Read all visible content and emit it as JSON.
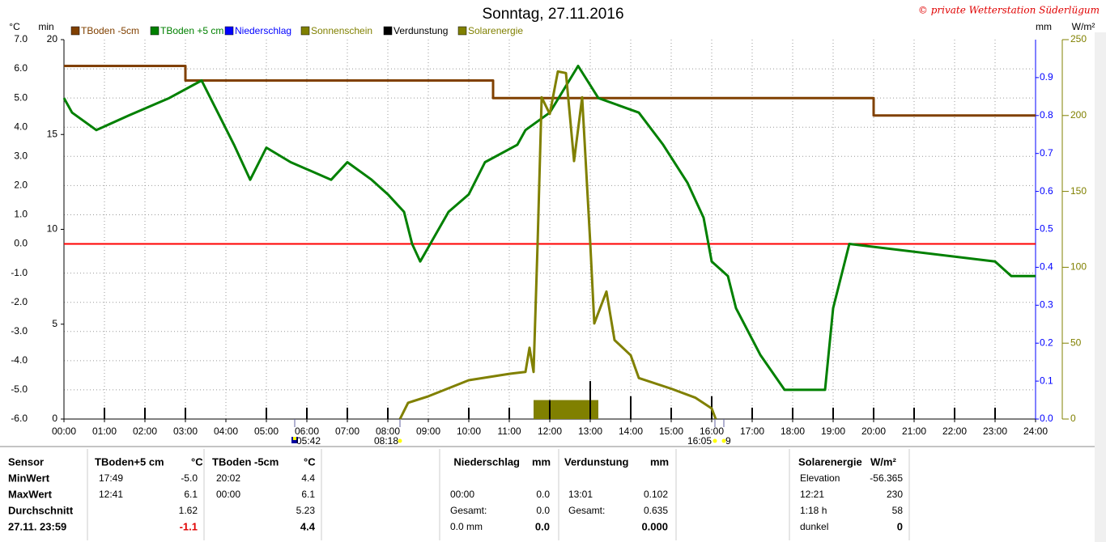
{
  "chart_data": {
    "type": "line",
    "title": "Sonntag, 27.11.2016",
    "credit": "© private Wetterstation Süderlügum",
    "y_unit": "°C",
    "y2_unit": "mm",
    "y3_unit": "min",
    "y4_unit": "W/m²",
    "xlim": [
      0,
      24
    ],
    "xticks": [
      {
        "value": 0,
        "label": "00:00"
      },
      {
        "value": 1,
        "label": "01:00"
      },
      {
        "value": 2,
        "label": "02:00"
      },
      {
        "value": 3,
        "label": "03:00"
      },
      {
        "value": 4,
        "label": "04:00"
      },
      {
        "value": 5,
        "label": "05:00"
      },
      {
        "value": 6,
        "label": "06:00"
      },
      {
        "value": 7,
        "label": "07:00"
      },
      {
        "value": 8,
        "label": "08:00"
      },
      {
        "value": 9,
        "label": "09:00"
      },
      {
        "value": 10,
        "label": "10:00"
      },
      {
        "value": 11,
        "label": "11:00"
      },
      {
        "value": 12,
        "label": "12:00"
      },
      {
        "value": 13,
        "label": "13:00"
      },
      {
        "value": 14,
        "label": "14:00"
      },
      {
        "value": 15,
        "label": "15:00"
      },
      {
        "value": 16,
        "label": "16:00"
      },
      {
        "value": 17,
        "label": "17:00"
      },
      {
        "value": 18,
        "label": "18:00"
      },
      {
        "value": 19,
        "label": "19:00"
      },
      {
        "value": 20,
        "label": "20:00"
      },
      {
        "value": 21,
        "label": "21:00"
      },
      {
        "value": 22,
        "label": "22:00"
      },
      {
        "value": 23,
        "label": "23:00"
      },
      {
        "value": 24,
        "label": "24:00"
      }
    ],
    "ylim": [
      -6,
      7
    ],
    "yticks": [
      {
        "value": -6,
        "label": "-6.0"
      },
      {
        "value": -5,
        "label": "-5.0"
      },
      {
        "value": -4,
        "label": "-4.0"
      },
      {
        "value": -3,
        "label": "-3.0"
      },
      {
        "value": -2,
        "label": "-2.0"
      },
      {
        "value": -1,
        "label": "-1.0"
      },
      {
        "value": 0,
        "label": "0.0"
      },
      {
        "value": 1,
        "label": "1.0"
      },
      {
        "value": 2,
        "label": "2.0"
      },
      {
        "value": 3,
        "label": "3.0"
      },
      {
        "value": 4,
        "label": "4.0"
      },
      {
        "value": 5,
        "label": "5.0"
      },
      {
        "value": 6,
        "label": "6.0"
      },
      {
        "value": 7,
        "label": "7.0"
      }
    ],
    "y2lim": [
      0,
      1
    ],
    "y2ticks": [
      {
        "value": 0,
        "label": "0.0"
      },
      0.1,
      0.2,
      0.3,
      0.4,
      0.5,
      0.6,
      0.7,
      0.8,
      0.9
    ],
    "y3lim": [
      0,
      20
    ],
    "y3ticks": [
      0,
      5,
      10,
      15,
      20
    ],
    "y4lim": [
      0,
      250
    ],
    "y4ticks": [
      0,
      50,
      100,
      150,
      200,
      250
    ],
    "grid": true,
    "zero_line_color": "#ff0000",
    "series": [
      {
        "name": "TBoden -5cm",
        "color": "#804000",
        "kind": "line",
        "axis": "y",
        "x": [
          0,
          3,
          3,
          10.6,
          10.6,
          20,
          20,
          24
        ],
        "values": [
          6.1,
          6.1,
          5.6,
          5.6,
          5.0,
          5.0,
          4.4,
          4.4
        ]
      },
      {
        "name": "TBoden +5 cm",
        "color": "#008000",
        "kind": "line",
        "axis": "y",
        "x": [
          0,
          0.2,
          0.8,
          1.6,
          2.6,
          3.4,
          3.8,
          4.2,
          4.6,
          5.0,
          5.6,
          6.6,
          7.0,
          7.6,
          8.0,
          8.4,
          8.6,
          8.8,
          9.5,
          10.0,
          10.4,
          11.2,
          11.4,
          12.0,
          12.7,
          13.2,
          14.2,
          14.8,
          15.4,
          15.8,
          16.0,
          16.4,
          16.6,
          17.2,
          17.8,
          18.8,
          19.0,
          19.4,
          23.0,
          23.4,
          24
        ],
        "values": [
          5.0,
          4.5,
          3.9,
          4.4,
          5.0,
          5.6,
          4.5,
          3.4,
          2.2,
          3.3,
          2.8,
          2.2,
          2.8,
          2.2,
          1.7,
          1.1,
          0.0,
          -0.6,
          1.1,
          1.7,
          2.8,
          3.4,
          3.9,
          4.5,
          6.1,
          5.0,
          4.5,
          3.4,
          2.1,
          0.9,
          -0.6,
          -1.1,
          -2.2,
          -3.8,
          -5.0,
          -5.0,
          -2.2,
          0.0,
          -0.6,
          -1.1,
          -1.1
        ]
      },
      {
        "name": "Niederschlag",
        "color": "#0000ff",
        "kind": "bar",
        "axis": "y2"
      },
      {
        "name": "Sonnenschein",
        "color": "#808000",
        "kind": "bar",
        "axis": "y3",
        "width": 0.1,
        "x": [
          11.6,
          11.7,
          11.8,
          11.9,
          12.0,
          12.1,
          12.2,
          12.3,
          12.4,
          12.5,
          12.6,
          12.7,
          12.8,
          12.9,
          13.0,
          13.1
        ],
        "values": [
          1,
          1,
          1,
          1,
          1,
          1,
          1,
          1,
          1,
          1,
          1,
          1,
          1,
          1,
          1,
          1
        ]
      },
      {
        "name": "Verdunstung",
        "color": "#000000",
        "kind": "bar",
        "axis": "y2",
        "width": 0.04,
        "x": [
          1,
          2,
          3,
          5,
          6,
          7,
          8,
          10,
          11,
          12,
          13,
          14,
          15,
          16,
          17,
          18,
          19,
          20,
          21,
          22,
          23
        ],
        "values": [
          0.03,
          0.03,
          0.03,
          0.03,
          0.03,
          0.03,
          0.03,
          0.03,
          0.03,
          0.05,
          0.1,
          0.06,
          0.03,
          0.06,
          0.03,
          0.03,
          0.03,
          0.03,
          0.03,
          0.03,
          0.03
        ]
      },
      {
        "name": "Solarenergie",
        "color": "#808000",
        "kind": "line",
        "axis": "y4",
        "x": [
          8.3,
          8.5,
          9.0,
          10.0,
          11.0,
          11.4,
          11.5,
          11.6,
          11.7,
          11.8,
          12.0,
          12.2,
          12.4,
          12.6,
          12.8,
          13.0,
          13.1,
          13.4,
          13.6,
          14.0,
          14.2,
          15.0,
          15.6,
          16.0,
          16.1
        ],
        "values": [
          0,
          10.7,
          15,
          25.6,
          29.8,
          31,
          47,
          31,
          116,
          212,
          201,
          229,
          228,
          170,
          212,
          116,
          63,
          84,
          52,
          42,
          27,
          20,
          14,
          7,
          0
        ]
      }
    ],
    "annotations": [
      {
        "text": "05:42",
        "x": 5.7
      },
      {
        "text": "08:18",
        "x": 8.3
      },
      {
        "text": "16:05",
        "x": 16.08
      },
      {
        "text": "9",
        "x": 16.3
      }
    ]
  },
  "table": {
    "header": {
      "label": "Sensor",
      "tb5": "TBoden+5 cm",
      "tb5_unit": "°C",
      "tbm5": "TBoden -5cm",
      "tbm5_unit": "°C",
      "rain": "Niederschlag",
      "rain_unit": "mm",
      "evap": "Verdunstung",
      "evap_unit": "mm",
      "solar": "Solarenergie",
      "solar_unit": "W/m²"
    },
    "rows": [
      {
        "label": "MinWert",
        "tb5_time": "17:49",
        "tb5_val": "-5.0",
        "tbm5_time": "20:02",
        "tbm5_val": "4.4",
        "solar_time": "Elevation",
        "solar_val": "-56.365"
      },
      {
        "label": "MaxWert",
        "tb5_time": "12:41",
        "tb5_val": "6.1",
        "tbm5_time": "00:00",
        "tbm5_val": "6.1",
        "rain_time": "00:00",
        "rain_val": "0.0",
        "evap_time": "13:01",
        "evap_val": "0.102",
        "solar_time": "12:21",
        "solar_val": "230"
      },
      {
        "label": "Durchschnitt",
        "tb5_val": "1.62",
        "tbm5_val": "5.23",
        "rain_time": "Gesamt:",
        "rain_val": "0.0",
        "evap_time": "Gesamt:",
        "evap_val": "0.635",
        "solar_time": "1:18 h",
        "solar_val": "58"
      },
      {
        "label": "27.11. 23:59",
        "tb5_val": "-1.1",
        "tbm5_val": "4.4",
        "rain_time": "0.0 mm",
        "rain_val": "0.0",
        "evap_val": "0.000",
        "solar_time": "dunkel",
        "solar_val": "0"
      }
    ]
  }
}
